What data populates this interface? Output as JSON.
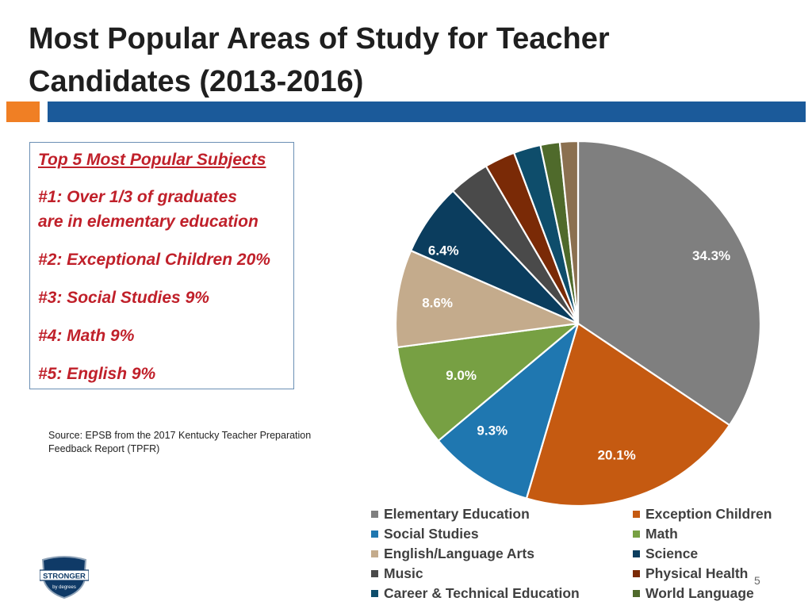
{
  "title": {
    "line1": "Most Popular Areas of Study for Teacher",
    "line2": "Candidates (2013-2016)"
  },
  "colors": {
    "accent_orange": "#f07f24",
    "accent_blue": "#1b5a9a",
    "box_text": "#c0202a"
  },
  "subjects_box": {
    "heading": "Top 5 Most Popular Subjects",
    "items": [
      "#1: Over 1/3  of graduates",
      "are in elementary education",
      "#2: Exceptional Children 20%",
      "#3: Social Studies 9%",
      "#4: Math 9%",
      "#5: English 9%"
    ]
  },
  "source": {
    "line1": "Source: EPSB from the 2017 Kentucky Teacher Preparation",
    "line2": "Feedback Report (TPFR)"
  },
  "chart_data": {
    "type": "pie",
    "start": "12 o'clock, clockwise",
    "legend_position": "bottom",
    "slices": [
      {
        "label": "Elementary Education",
        "value": 34.3,
        "data_label": "34.3%",
        "color": "#7f7f7f"
      },
      {
        "label": "Exception Children",
        "value": 20.1,
        "data_label": "20.1%",
        "color": "#c55a11"
      },
      {
        "label": "Social Studies",
        "value": 9.3,
        "data_label": "9.3%",
        "color": "#1f77b0"
      },
      {
        "label": "Math",
        "value": 9.0,
        "data_label": "9.0%",
        "color": "#77a043"
      },
      {
        "label": "English/Language Arts",
        "value": 8.6,
        "data_label": "8.6%",
        "color": "#c4ab8c"
      },
      {
        "label": "Science",
        "value": 6.4,
        "data_label": "6.4%",
        "color": "#0b3d5e"
      },
      {
        "label": "Music",
        "value": 3.6,
        "data_label": "",
        "color": "#4a4a4a"
      },
      {
        "label": "Physical Health",
        "value": 2.7,
        "data_label": "",
        "color": "#7a2a06"
      },
      {
        "label": "Career & Technical Education",
        "value": 2.4,
        "data_label": "",
        "color": "#0e4d6b"
      },
      {
        "label": "World Language",
        "value": 1.7,
        "data_label": "",
        "color": "#4f6a2b"
      },
      {
        "label": "",
        "value": 1.6,
        "data_label": "",
        "color": "#8b7050"
      }
    ]
  },
  "logo": {
    "line1": "STRONGER",
    "line2": "by degrees"
  },
  "page_number": "5"
}
